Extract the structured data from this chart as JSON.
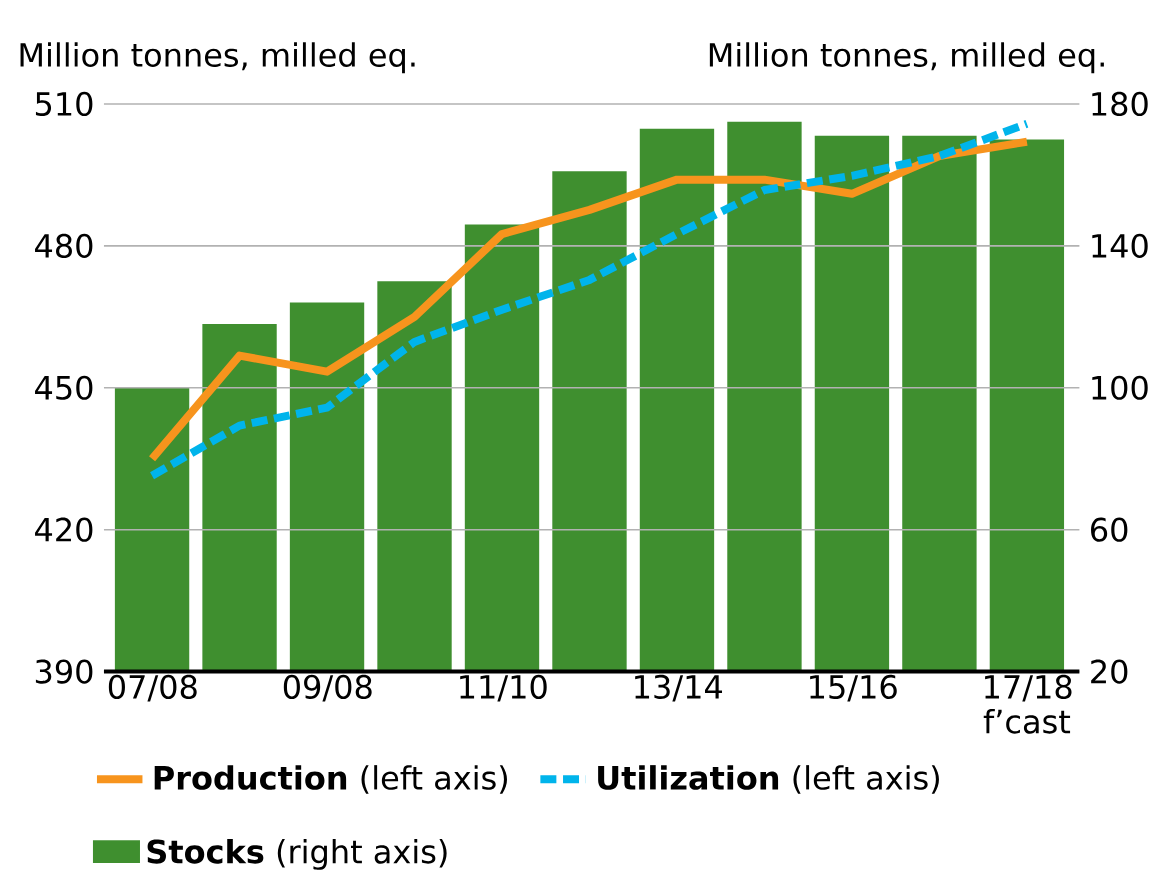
{
  "chart_data": {
    "type": "bar",
    "ylabel": "Million tonnes, milled eq.",
    "y2label": "Million tonnes, milled eq.",
    "categories": [
      "07/08",
      null,
      "09/08",
      null,
      "11/10",
      null,
      "13/14",
      null,
      "15/16",
      null,
      "17/18 f’cast"
    ],
    "series": [
      {
        "name": "**Stocks** (right axis)",
        "type": "bar",
        "axis": "y2",
        "color": "#3f8f2f",
        "values": [
          100,
          118,
          124,
          130,
          146,
          161,
          173,
          175,
          171,
          171,
          170
        ]
      },
      {
        "name": "**Production** (left axis)",
        "type": "line",
        "line_style": "solid",
        "color": "#f7941d",
        "values": [
          435,
          456.8,
          453.4,
          465,
          482.5,
          487.6,
          494,
          494,
          491,
          499,
          502
        ]
      },
      {
        "name": "**Utilization** (left axis)",
        "type": "line",
        "line_style": "dashed",
        "color": "#00b4eb",
        "values": [
          431.4,
          442,
          445.8,
          459.7,
          466.5,
          472.8,
          482.5,
          491.8,
          494.8,
          499,
          505.8
        ]
      }
    ],
    "ylim": [
      390,
      510
    ],
    "yticks": [
      390,
      420,
      450,
      480,
      510
    ],
    "y2lim": [
      20,
      180
    ],
    "y2ticks": [
      20,
      60,
      100,
      140,
      180
    ],
    "grid": "y",
    "legend": "bottom",
    "marker": "none"
  }
}
